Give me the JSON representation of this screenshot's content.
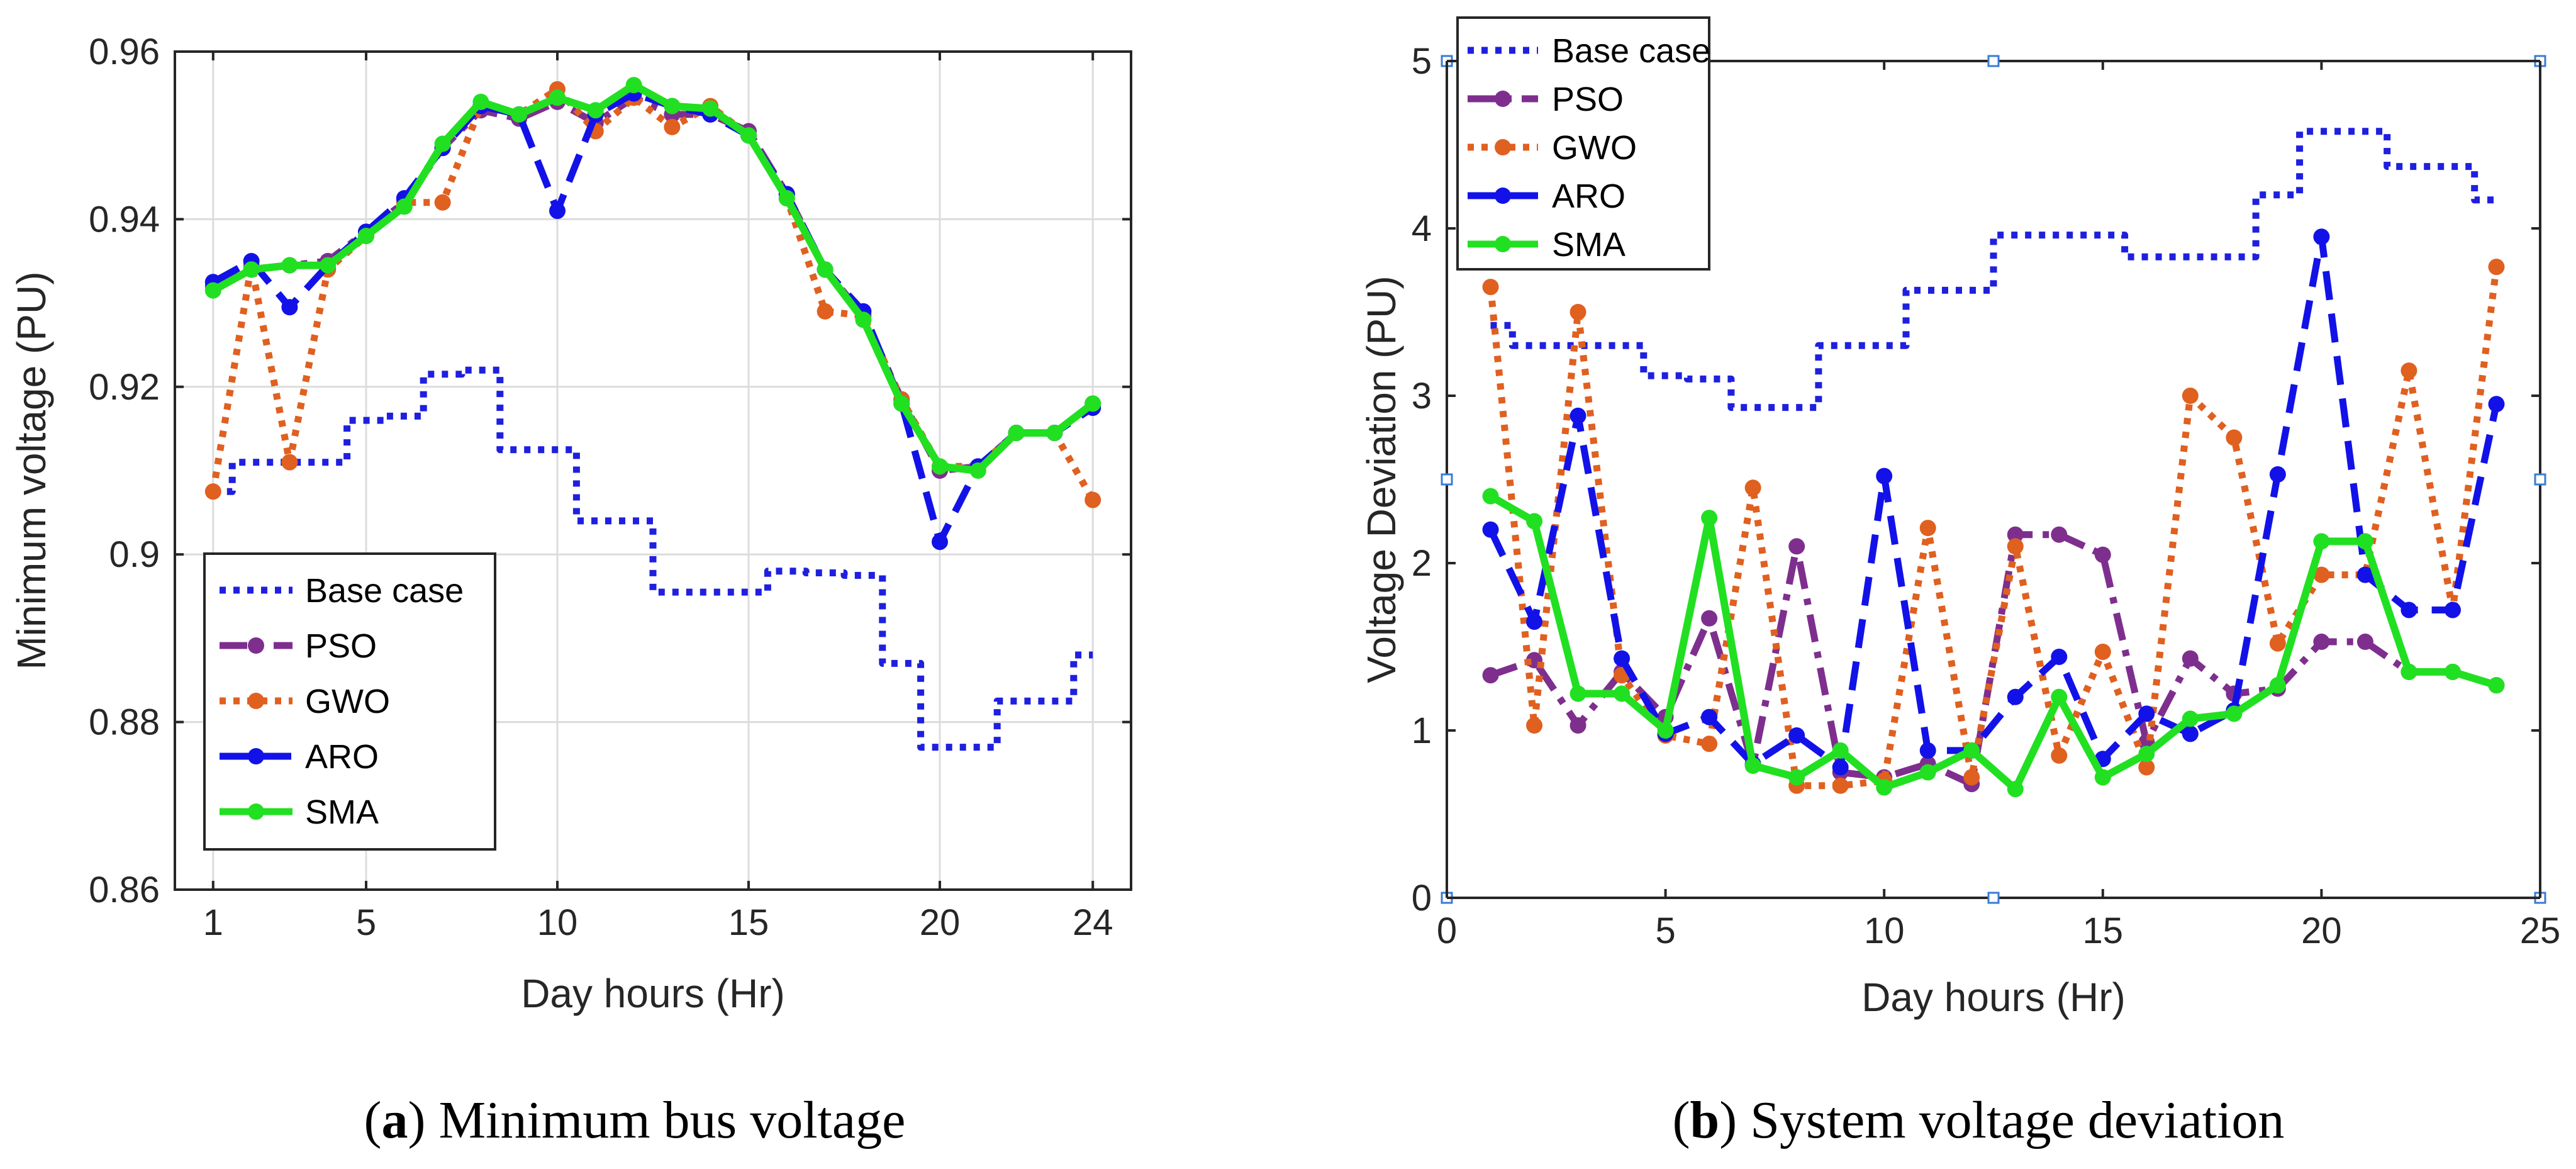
{
  "chart_data": [
    {
      "type": "line",
      "caption_letter": "a",
      "caption_text": ") Minimum bus voltage",
      "xlabel": "Day hours (Hr)",
      "ylabel": "Minimum voltage (PU)",
      "xlim": [
        0,
        25
      ],
      "ylim": [
        0.86,
        0.96
      ],
      "xticks": [
        1,
        5,
        10,
        15,
        20,
        24
      ],
      "yticks": [
        0.86,
        0.88,
        0.9,
        0.92,
        0.94,
        0.96
      ],
      "ytick_labels": [
        "0.86",
        "0.88",
        "0.9",
        "0.92",
        "0.94",
        "0.96"
      ],
      "grid": true,
      "legend_placement": "bottom-left",
      "x": [
        1,
        2,
        3,
        4,
        5,
        6,
        7,
        8,
        9,
        10,
        11,
        12,
        13,
        14,
        15,
        16,
        17,
        18,
        19,
        20,
        21,
        22,
        23,
        24
      ],
      "series": [
        {
          "name": "Base case",
          "color": "#1f1fe0",
          "dash": "dot",
          "marker": false,
          "step": true,
          "values": [
            0.9075,
            0.911,
            0.911,
            0.911,
            0.916,
            0.9165,
            0.9215,
            0.922,
            0.9125,
            0.9125,
            0.904,
            0.904,
            0.8955,
            0.8955,
            0.8955,
            0.898,
            0.8978,
            0.8975,
            0.887,
            0.877,
            0.877,
            0.8825,
            0.8825,
            0.888
          ]
        },
        {
          "name": "PSO",
          "color": "#7e2f8e",
          "dash": "dashdot",
          "marker": true,
          "values": [
            0.932,
            0.934,
            0.9345,
            0.935,
            0.9385,
            0.942,
            0.9485,
            0.953,
            0.952,
            0.954,
            0.9515,
            0.9545,
            0.9525,
            0.9525,
            0.9505,
            0.943,
            0.934,
            0.9285,
            0.9185,
            0.91,
            0.9105,
            0.9145,
            0.9145,
            0.918
          ]
        },
        {
          "name": "GWO",
          "color": "#e06020",
          "dash": "dot",
          "marker": true,
          "values": [
            0.9075,
            0.9345,
            0.911,
            0.934,
            0.938,
            0.942,
            0.942,
            0.9535,
            0.9525,
            0.9555,
            0.9505,
            0.9545,
            0.951,
            0.9535,
            0.95,
            0.9425,
            0.929,
            0.9285,
            0.9185,
            0.9105,
            0.9105,
            0.9145,
            0.9145,
            0.9065
          ]
        },
        {
          "name": "ARO",
          "color": "#1212e8",
          "dash": "dash",
          "marker": true,
          "values": [
            0.9325,
            0.935,
            0.9295,
            0.9345,
            0.9385,
            0.9425,
            0.9485,
            0.9535,
            0.9525,
            0.941,
            0.9525,
            0.955,
            0.9535,
            0.9525,
            0.95,
            0.943,
            0.934,
            0.929,
            0.918,
            0.9015,
            0.9105,
            0.9145,
            0.9145,
            0.9175
          ]
        },
        {
          "name": "SMA",
          "color": "#21e021",
          "dash": "solid",
          "marker": true,
          "values": [
            0.9315,
            0.934,
            0.9345,
            0.9345,
            0.938,
            0.9415,
            0.949,
            0.954,
            0.9525,
            0.9545,
            0.953,
            0.956,
            0.9535,
            0.9532,
            0.95,
            0.9425,
            0.934,
            0.928,
            0.918,
            0.9105,
            0.91,
            0.9145,
            0.9145,
            0.918
          ]
        }
      ]
    },
    {
      "type": "line",
      "caption_letter": "b",
      "caption_text": ") System voltage deviation",
      "xlabel": "Day hours (Hr)",
      "ylabel": "Voltage Deviation (PU)",
      "xlim": [
        0,
        25
      ],
      "ylim": [
        0,
        5
      ],
      "xticks": [
        0,
        5,
        10,
        15,
        20,
        25
      ],
      "yticks": [
        0,
        1,
        2,
        3,
        4,
        5
      ],
      "ytick_labels": [
        "0",
        "1",
        "2",
        "3",
        "4",
        "5"
      ],
      "grid": false,
      "legend_placement": "top-left",
      "x": [
        1,
        2,
        3,
        4,
        5,
        6,
        7,
        8,
        9,
        10,
        11,
        12,
        13,
        14,
        15,
        16,
        17,
        18,
        19,
        20,
        21,
        22,
        23,
        24
      ],
      "series": [
        {
          "name": "Base case",
          "color": "#1f1fe0",
          "dash": "dot",
          "marker": false,
          "step": true,
          "values": [
            3.42,
            3.3,
            3.3,
            3.3,
            3.12,
            3.1,
            2.93,
            2.93,
            3.3,
            3.3,
            3.63,
            3.63,
            3.96,
            3.96,
            3.96,
            3.83,
            3.83,
            3.83,
            4.2,
            4.58,
            4.58,
            4.37,
            4.37,
            4.17
          ]
        },
        {
          "name": "PSO",
          "color": "#7e2f8e",
          "dash": "dashdot",
          "marker": true,
          "values": [
            1.33,
            1.42,
            1.03,
            1.35,
            1.08,
            1.67,
            0.79,
            2.1,
            0.75,
            0.72,
            0.8,
            0.68,
            2.17,
            2.17,
            2.05,
            0.93,
            1.43,
            1.22,
            1.25,
            1.53,
            1.53,
            1.35,
            1.35,
            1.27
          ]
        },
        {
          "name": "GWO",
          "color": "#e06020",
          "dash": "dot",
          "marker": true,
          "values": [
            3.65,
            1.03,
            3.5,
            1.33,
            0.97,
            0.92,
            2.45,
            0.67,
            0.67,
            0.7,
            2.21,
            0.72,
            2.1,
            0.85,
            1.47,
            0.78,
            3.0,
            2.75,
            1.52,
            1.93,
            1.93,
            3.15,
            1.72,
            3.77
          ]
        },
        {
          "name": "ARO",
          "color": "#1212e8",
          "dash": "dash",
          "marker": true,
          "values": [
            2.2,
            1.65,
            2.88,
            1.43,
            0.98,
            1.08,
            0.8,
            0.97,
            0.78,
            2.52,
            0.88,
            0.88,
            1.2,
            1.44,
            0.83,
            1.1,
            0.98,
            1.12,
            2.53,
            3.95,
            1.93,
            1.72,
            1.72,
            2.95
          ]
        },
        {
          "name": "SMA",
          "color": "#21e021",
          "dash": "solid",
          "marker": true,
          "values": [
            2.4,
            2.25,
            1.22,
            1.22,
            1.0,
            2.27,
            0.79,
            0.72,
            0.88,
            0.66,
            0.75,
            0.88,
            0.65,
            1.2,
            0.72,
            0.86,
            1.07,
            1.1,
            1.27,
            2.13,
            2.13,
            1.35,
            1.35,
            1.27
          ]
        }
      ]
    }
  ]
}
